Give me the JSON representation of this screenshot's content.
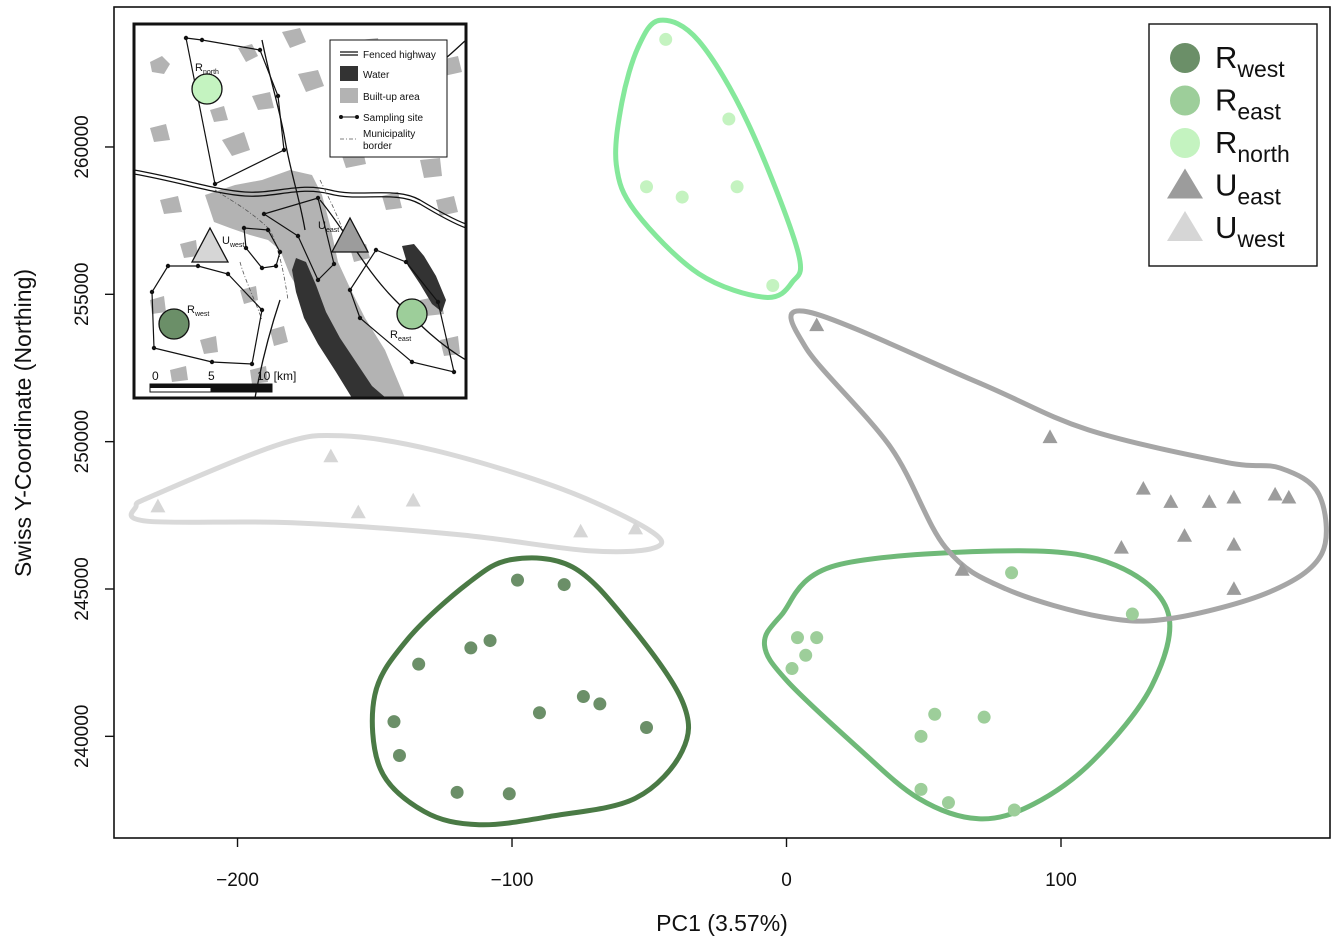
{
  "chart_data": {
    "type": "scatter",
    "title": "",
    "xlabel": "PC1 (3.57%)",
    "ylabel": "Swiss Y-Coordinate (Northing)",
    "xlim": [
      -245,
      198
    ],
    "ylim": [
      236550,
      264750
    ],
    "xticks": [
      -200,
      -100,
      0,
      100
    ],
    "xtick_labels": [
      "−200",
      "−100",
      "0",
      "100"
    ],
    "yticks": [
      240000,
      245000,
      250000,
      255000,
      260000
    ],
    "ytick_labels": [
      "240000",
      "245000",
      "250000",
      "255000",
      "260000"
    ],
    "grid": false,
    "legend_position": "top-right",
    "series": [
      {
        "name": "R",
        "sub": "west",
        "marker": "circle",
        "color": "#6b8f68",
        "hull_color": "#4a7a45",
        "points": [
          [
            -98,
            245300
          ],
          [
            -81,
            245150
          ],
          [
            -108,
            243250
          ],
          [
            -115,
            243000
          ],
          [
            -134,
            242450
          ],
          [
            -74,
            241350
          ],
          [
            -68,
            241100
          ],
          [
            -90,
            240800
          ],
          [
            -143,
            240500
          ],
          [
            -51,
            240300
          ],
          [
            -141,
            239350
          ],
          [
            -120,
            238100
          ],
          [
            -101,
            238050
          ]
        ],
        "hull": [
          [
            -100,
            246000
          ],
          [
            -78,
            245750
          ],
          [
            -58,
            243900
          ],
          [
            -38,
            241200
          ],
          [
            -38,
            239500
          ],
          [
            -55,
            237900
          ],
          [
            -85,
            237300
          ],
          [
            -112,
            237000
          ],
          [
            -132,
            237450
          ],
          [
            -148,
            238900
          ],
          [
            -150,
            241400
          ],
          [
            -138,
            243300
          ],
          [
            -116,
            245200
          ]
        ]
      },
      {
        "name": "R",
        "sub": "east",
        "marker": "circle",
        "color": "#9dce9a",
        "hull_color": "#6fb978",
        "points": [
          [
            82,
            245550
          ],
          [
            126,
            244150
          ],
          [
            4,
            243350
          ],
          [
            11,
            243350
          ],
          [
            7,
            242750
          ],
          [
            2,
            242300
          ],
          [
            54,
            240750
          ],
          [
            72,
            240650
          ],
          [
            49,
            240000
          ],
          [
            49,
            238200
          ],
          [
            59,
            237750
          ],
          [
            83,
            237500
          ]
        ],
        "hull": [
          [
            18,
            245800
          ],
          [
            85,
            246300
          ],
          [
            120,
            245800
          ],
          [
            139,
            244200
          ],
          [
            133,
            241700
          ],
          [
            112,
            239200
          ],
          [
            90,
            237700
          ],
          [
            70,
            237200
          ],
          [
            48,
            237900
          ],
          [
            25,
            239700
          ],
          [
            0,
            241900
          ],
          [
            -8,
            243100
          ],
          [
            -2,
            244100
          ]
        ]
      },
      {
        "name": "R",
        "sub": "north",
        "marker": "circle",
        "color": "#c4f3c0",
        "hull_color": "#85e89b",
        "points": [
          [
            -44,
            263650
          ],
          [
            -21,
            260950
          ],
          [
            -51,
            258650
          ],
          [
            -18,
            258650
          ],
          [
            -38,
            258300
          ],
          [
            -5,
            255300
          ]
        ],
        "hull": [
          [
            -46,
            264300
          ],
          [
            -32,
            263600
          ],
          [
            -14,
            260800
          ],
          [
            4,
            256500
          ],
          [
            2,
            255400
          ],
          [
            -8,
            254900
          ],
          [
            -32,
            255700
          ],
          [
            -55,
            257800
          ],
          [
            -62,
            259400
          ],
          [
            -60,
            261500
          ],
          [
            -54,
            263400
          ]
        ]
      },
      {
        "name": "U",
        "sub": "east",
        "marker": "triangle",
        "color": "#9c9c9c",
        "hull_color": "#a6a6a6",
        "points": [
          [
            11,
            253950
          ],
          [
            96,
            250150
          ],
          [
            130,
            248400
          ],
          [
            140,
            247950
          ],
          [
            154,
            247950
          ],
          [
            163,
            248100
          ],
          [
            178,
            248200
          ],
          [
            183,
            248100
          ],
          [
            122,
            246400
          ],
          [
            145,
            246800
          ],
          [
            163,
            246500
          ],
          [
            64,
            245650
          ],
          [
            163,
            245000
          ]
        ],
        "hull": [
          [
            8,
            254400
          ],
          [
            70,
            252000
          ],
          [
            110,
            250400
          ],
          [
            160,
            249300
          ],
          [
            180,
            249100
          ],
          [
            194,
            248200
          ],
          [
            195,
            246200
          ],
          [
            176,
            244900
          ],
          [
            140,
            244000
          ],
          [
            115,
            244050
          ],
          [
            80,
            245000
          ],
          [
            58,
            246400
          ],
          [
            38,
            249800
          ],
          [
            7,
            253200
          ]
        ]
      },
      {
        "name": "U",
        "sub": "west",
        "marker": "triangle",
        "color": "#d6d6d6",
        "hull_color": "#d9d9d9",
        "points": [
          [
            -166,
            249500
          ],
          [
            -136,
            248000
          ],
          [
            -156,
            247600
          ],
          [
            -229,
            247800
          ],
          [
            -75,
            246950
          ],
          [
            -55,
            247050
          ]
        ],
        "hull": [
          [
            -230,
            248200
          ],
          [
            -185,
            249900
          ],
          [
            -162,
            250200
          ],
          [
            -128,
            249700
          ],
          [
            -82,
            248400
          ],
          [
            -50,
            247000
          ],
          [
            -48,
            246400
          ],
          [
            -72,
            246300
          ],
          [
            -120,
            246850
          ],
          [
            -180,
            247250
          ],
          [
            -233,
            247300
          ],
          [
            -237,
            247800
          ]
        ]
      }
    ],
    "inset": {
      "legend": {
        "highway": "Fenced highway",
        "water": "Water",
        "builtup": "Built-up area",
        "site": "Sampling site",
        "border": "Municipality",
        "border2": "border"
      },
      "labels": {
        "rnorth_main": "R",
        "rnorth_sub": "north",
        "rwest_main": "R",
        "rwest_sub": "west",
        "reast_main": "R",
        "reast_sub": "east",
        "uwest_main": "U",
        "uwest_sub": "west",
        "ueast_main": "U",
        "ueast_sub": "east"
      },
      "scale": {
        "t0": "0",
        "t5": "5",
        "t10": "10 [km]"
      },
      "colors": {
        "water": "#333333",
        "builtup": "#b3b3b3",
        "site": "#111111"
      }
    }
  }
}
